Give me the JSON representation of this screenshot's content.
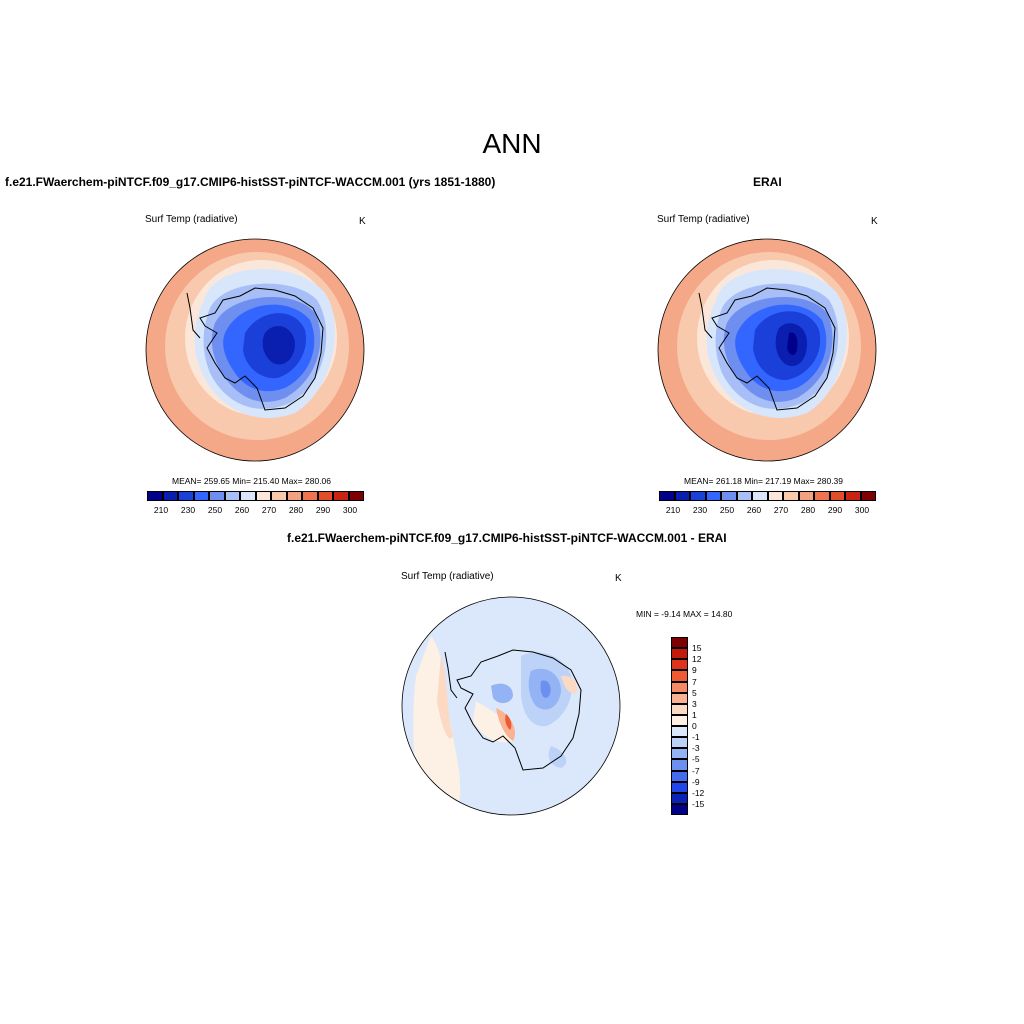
{
  "main_title": "ANN",
  "panels": [
    {
      "title": "f.e21.FWaerchem-piNTCF.f09_g17.CMIP6-histSST-piNTCF-WACCM.001 (yrs 1851-1880)",
      "variable": "Surf Temp (radiative)",
      "units": "K",
      "stats": "MEAN= 259.65  Min= 215.40  Max= 280.06"
    },
    {
      "title": "ERAI",
      "variable": "Surf Temp (radiative)",
      "units": "K",
      "stats": "MEAN= 261.18  Min= 217.19  Max= 280.39"
    },
    {
      "title": "f.e21.FWaerchem-piNTCF.f09_g17.CMIP6-histSST-piNTCF-WACCM.001 - ERAI",
      "variable": "Surf Temp (radiative)",
      "units": "K",
      "stats": "MIN =  -9.14 MAX =  14.80"
    }
  ],
  "colorbars": {
    "absolute": {
      "colors": [
        "#00008b",
        "#0a1fb0",
        "#1a40d9",
        "#3366ff",
        "#6f8ff0",
        "#a7bff6",
        "#d7e6fb",
        "#fbe7d9",
        "#f9c9ad",
        "#f3a27e",
        "#ec7450",
        "#e24c28",
        "#c9240f",
        "#7f0000"
      ],
      "labels": [
        "210",
        "230",
        "250",
        "260",
        "270",
        "280",
        "290",
        "300"
      ]
    },
    "difference": {
      "colors": [
        "#7f0000",
        "#c41a0a",
        "#e0331d",
        "#ef5a33",
        "#f58a63",
        "#f9b292",
        "#fcd9c3",
        "#fdf0e4",
        "#dbe8fb",
        "#bcd3f7",
        "#93b3f4",
        "#6c8ff0",
        "#456cf0",
        "#2147ea",
        "#0a22b8",
        "#00008b"
      ],
      "labels": [
        "15",
        "12",
        "9",
        "7",
        "5",
        "3",
        "1",
        "0",
        "-1",
        "-3",
        "-5",
        "-7",
        "-9",
        "-12",
        "-15"
      ]
    }
  }
}
